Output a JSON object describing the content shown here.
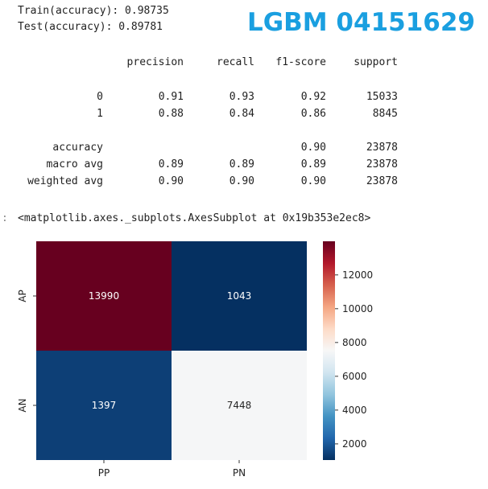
{
  "watermark": "LGBM 04151629",
  "scores": {
    "train": "Train(accuracy): 0.98735",
    "test": "Test(accuracy): 0.89781"
  },
  "report": {
    "header": [
      "precision",
      "recall",
      "f1-score",
      "support"
    ],
    "rows": [
      {
        "label": "0",
        "precision": "0.91",
        "recall": "0.93",
        "f1": "0.92",
        "support": "15033"
      },
      {
        "label": "1",
        "precision": "0.88",
        "recall": "0.84",
        "f1": "0.86",
        "support": "8845"
      },
      {
        "label": "accuracy",
        "precision": "",
        "recall": "",
        "f1": "0.90",
        "support": "23878"
      },
      {
        "label": "macro avg",
        "precision": "0.89",
        "recall": "0.89",
        "f1": "0.89",
        "support": "23878"
      },
      {
        "label": "weighted avg",
        "precision": "0.90",
        "recall": "0.90",
        "f1": "0.90",
        "support": "23878"
      }
    ]
  },
  "output_repr": "<matplotlib.axes._subplots.AxesSubplot at 0x19b353e2ec8>",
  "prompt_marker": ":",
  "chart_data": {
    "type": "heatmap",
    "row_labels": [
      "AP",
      "AN"
    ],
    "col_labels": [
      "PP",
      "PN"
    ],
    "values": [
      [
        13990,
        1043
      ],
      [
        1397,
        7448
      ]
    ],
    "colormap": "RdBu_r",
    "vmin": 1043,
    "vmax": 13990,
    "colorbar_ticks": [
      2000,
      4000,
      6000,
      8000,
      10000,
      12000
    ]
  },
  "colors": {
    "watermark": "#1a9fe0"
  }
}
